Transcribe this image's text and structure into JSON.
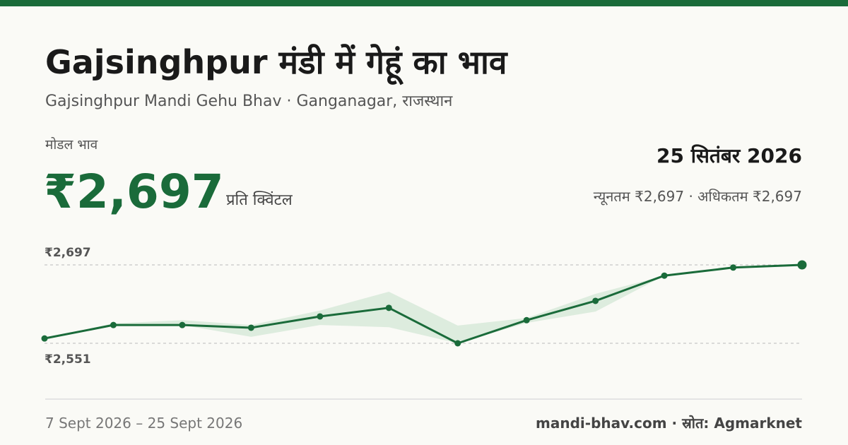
{
  "header": {
    "title": "Gajsinghpur मंडी में गेहूं का भाव",
    "subtitle": "Gajsinghpur Mandi Gehu Bhav · Ganganagar, राजस्थान"
  },
  "price": {
    "label": "मोडल भाव",
    "value": "₹2,697",
    "unit": "प्रति क्विंटल",
    "date": "25 सितंबर 2026",
    "range": "न्यूनतम ₹2,697 · अधिकतम ₹2,697"
  },
  "chart_data": {
    "type": "line",
    "color": "#1a6b3a",
    "band_color": "#d6e8d8",
    "values": [
      2560,
      2585,
      2585,
      2580,
      2601,
      2617,
      2551,
      2594,
      2630,
      2677,
      2692,
      2697
    ],
    "range_low": [
      2560,
      2585,
      2585,
      2563,
      2585,
      2581,
      2551,
      2589,
      2610,
      2677,
      2692,
      2697
    ],
    "range_high": [
      2560,
      2588,
      2594,
      2585,
      2612,
      2647,
      2584,
      2598,
      2643,
      2677,
      2692,
      2697
    ],
    "ylim": [
      2551,
      2697
    ],
    "yticks": [
      {
        "value": 2697,
        "label": "₹2,697"
      },
      {
        "value": 2551,
        "label": "₹2,551"
      }
    ],
    "grid": true
  },
  "footer": {
    "dates": "7 Sept 2026 – 25 Sept 2026",
    "source": "mandi-bhav.com · स्रोत: Agmarknet"
  }
}
